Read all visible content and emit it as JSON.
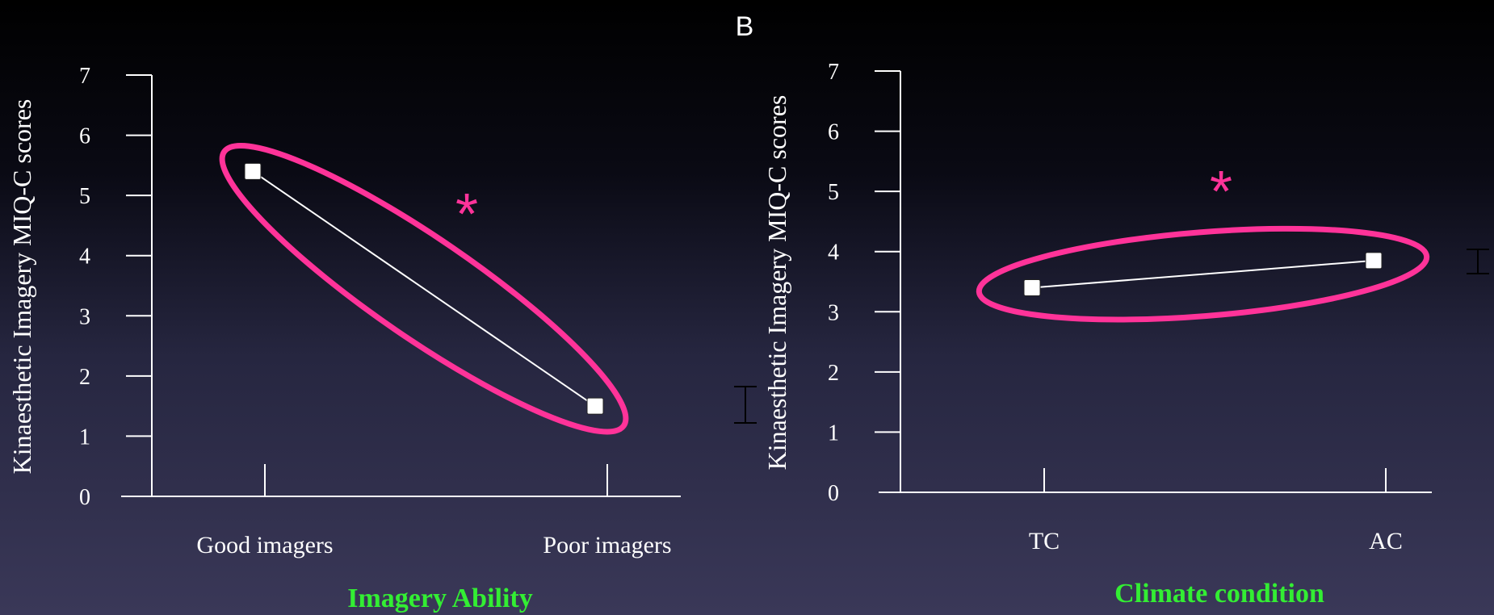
{
  "colors": {
    "axis": "#ffffff",
    "series_line": "#ffffff",
    "marker": "#ffffff",
    "highlight_ellipse": "#ff3399",
    "xlabel_text": "#33ee33",
    "significance_star": "#ff3399"
  },
  "chart_data": [
    {
      "type": "line",
      "panel_label": "",
      "ylabel": "Kinaesthetic Imagery MIQ-C  scores",
      "xlabel": "Imagery Ability",
      "categories": [
        "Good imagers",
        "Poor imagers"
      ],
      "ylim": [
        0,
        7
      ],
      "yticks": [
        "0",
        "1",
        "2",
        "3",
        "4",
        "5",
        "6",
        "7"
      ],
      "series": [
        {
          "values": [
            5.4,
            1.5
          ]
        }
      ],
      "annotations": [
        "*"
      ],
      "error_bar_marker": true,
      "grid": false
    },
    {
      "type": "line",
      "panel_label": "B",
      "ylabel": "Kinaesthetic Imagery MIQ-C  scores",
      "xlabel": "Climate condition",
      "categories": [
        "TC",
        "AC"
      ],
      "ylim": [
        0,
        7
      ],
      "yticks": [
        "0",
        "1",
        "2",
        "3",
        "4",
        "5",
        "6",
        "7"
      ],
      "series": [
        {
          "values": [
            3.4,
            3.85
          ]
        }
      ],
      "annotations": [
        "*"
      ],
      "error_bar_marker": true,
      "grid": false
    }
  ]
}
